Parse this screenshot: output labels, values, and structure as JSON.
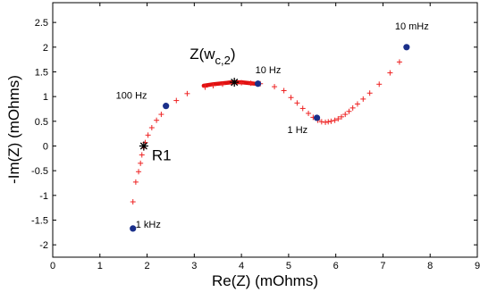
{
  "chart_data": {
    "type": "scatter",
    "xlabel": "Re(Z) (mOhms)",
    "ylabel": "-Im(Z) (mOhms)",
    "xlim": [
      0,
      9
    ],
    "ylim": [
      -2.25,
      2.9
    ],
    "xticks": [
      "0",
      "1",
      "2",
      "3",
      "4",
      "5",
      "6",
      "7",
      "8",
      "9"
    ],
    "yticks": [
      "-2",
      "-1.5",
      "-1",
      "-0.5",
      "0",
      "0.5",
      "1",
      "1.5",
      "2",
      "2.5"
    ],
    "grid": false,
    "legend": "none",
    "series": [
      {
        "marker": "+",
        "color": "#ee2222",
        "points": [
          [
            1.7,
            -1.13
          ],
          [
            1.76,
            -0.73
          ],
          [
            1.82,
            -0.52
          ],
          [
            1.86,
            -0.35
          ],
          [
            1.89,
            -0.18
          ],
          [
            1.93,
            -0.04
          ],
          [
            1.96,
            0.07
          ],
          [
            2.02,
            0.22
          ],
          [
            2.1,
            0.37
          ],
          [
            2.2,
            0.52
          ],
          [
            2.3,
            0.64
          ],
          [
            2.62,
            0.92
          ],
          [
            2.85,
            1.06
          ],
          [
            3.23,
            1.19
          ],
          [
            3.4,
            1.22
          ],
          [
            3.6,
            1.25
          ],
          [
            3.8,
            1.27
          ],
          [
            4.0,
            1.28
          ],
          [
            4.2,
            1.27
          ],
          [
            4.4,
            1.26
          ],
          [
            4.7,
            1.2
          ],
          [
            4.9,
            1.12
          ],
          [
            5.05,
            0.98
          ],
          [
            5.18,
            0.87
          ],
          [
            5.3,
            0.76
          ],
          [
            5.42,
            0.66
          ],
          [
            5.52,
            0.58
          ],
          [
            5.62,
            0.52
          ],
          [
            5.7,
            0.49
          ],
          [
            5.78,
            0.48
          ],
          [
            5.84,
            0.49
          ],
          [
            5.9,
            0.5
          ],
          [
            5.98,
            0.52
          ],
          [
            6.05,
            0.55
          ],
          [
            6.12,
            0.59
          ],
          [
            6.2,
            0.64
          ],
          [
            6.28,
            0.7
          ],
          [
            6.36,
            0.77
          ],
          [
            6.46,
            0.85
          ],
          [
            6.58,
            0.95
          ],
          [
            6.72,
            1.07
          ],
          [
            6.92,
            1.25
          ],
          [
            7.15,
            1.48
          ],
          [
            7.35,
            1.7
          ]
        ]
      },
      {
        "marker": "thick-arc",
        "color": "#e01010",
        "points": [
          [
            3.2,
            1.22
          ],
          [
            3.4,
            1.25
          ],
          [
            3.6,
            1.27
          ],
          [
            3.8,
            1.29
          ],
          [
            4.0,
            1.29
          ],
          [
            4.2,
            1.27
          ],
          [
            4.3,
            1.26
          ]
        ]
      },
      {
        "marker": "dot",
        "color": "#1a2f8a",
        "points": [
          [
            1.7,
            -1.67
          ],
          [
            2.4,
            0.81
          ],
          [
            4.35,
            1.26
          ],
          [
            5.6,
            0.57
          ],
          [
            7.5,
            2.0
          ]
        ]
      },
      {
        "marker": "asterisk",
        "color": "#000000",
        "points": [
          [
            1.93,
            0.0
          ],
          [
            3.85,
            1.29
          ]
        ]
      }
    ],
    "annotations": [
      {
        "text": "1 kHz",
        "x": 1.7,
        "y": -1.67
      },
      {
        "text": "100 Hz",
        "x": 2.4,
        "y": 0.81
      },
      {
        "text": "10 Hz",
        "x": 4.35,
        "y": 1.26
      },
      {
        "text": "1 Hz",
        "x": 5.6,
        "y": 0.57
      },
      {
        "text": "10 mHz",
        "x": 7.5,
        "y": 2.0
      },
      {
        "text": "R1",
        "x": 1.93,
        "y": 0.0
      },
      {
        "text": "Z(w",
        "subscript": "c,2",
        "suffix": ")",
        "x": 3.85,
        "y": 1.29
      }
    ]
  }
}
